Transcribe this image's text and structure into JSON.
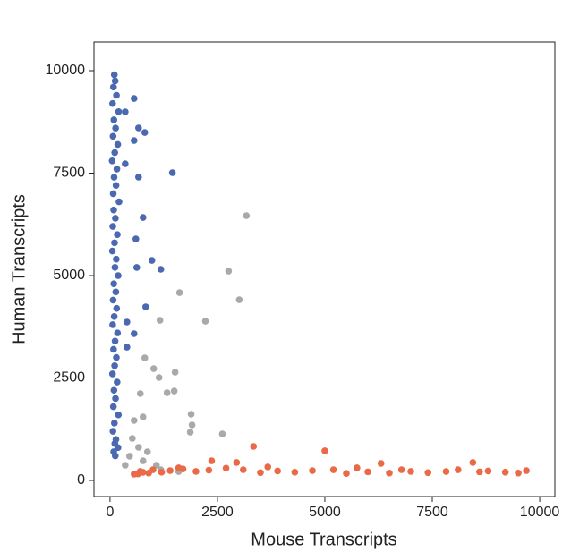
{
  "chart_data": {
    "type": "scatter",
    "x_label": "Mouse Transcripts",
    "y_label": "Human Transcripts",
    "xlim": [
      -373,
      10353
    ],
    "ylim": [
      -393,
      10699
    ],
    "xticks": [
      0,
      2500,
      5000,
      7500,
      10000
    ],
    "yticks": [
      0,
      2500,
      5000,
      7500,
      10000
    ],
    "grid": false,
    "series": [
      {
        "color": "#4a69b0",
        "x": [
          100,
          120,
          80,
          150,
          60,
          200,
          90,
          130,
          70,
          180,
          110,
          50,
          160,
          95,
          140,
          75,
          210,
          85,
          125,
          65,
          170,
          105,
          55,
          145,
          115,
          190,
          88,
          135,
          72,
          155,
          98,
          62,
          175,
          118,
          82,
          148,
          108,
          58,
          165,
          92,
          128,
          78,
          195,
          102,
          68,
          138,
          112,
          185,
          86,
          122,
          560,
          353,
          664,
          809,
          560,
          1452,
          353,
          664,
          768,
          602,
          975,
          1183,
          622,
          830,
          394,
          560,
          394
        ],
        "values": [
          9900,
          9750,
          9600,
          9400,
          9200,
          9000,
          8800,
          8600,
          8400,
          8200,
          8000,
          7800,
          7600,
          7400,
          7200,
          7000,
          6800,
          6600,
          6400,
          6200,
          6000,
          5800,
          5600,
          5400,
          5200,
          5000,
          4800,
          4600,
          4400,
          4200,
          4000,
          3800,
          3600,
          3400,
          3200,
          3000,
          2800,
          2600,
          2400,
          2200,
          2000,
          1800,
          1600,
          1400,
          1200,
          1000,
          900,
          800,
          700,
          600,
          9323,
          8996,
          8603,
          8493,
          8297,
          7511,
          7729,
          7402,
          6419,
          5895,
          5371,
          5153,
          5197,
          4236,
          3865,
          3581,
          3253
        ]
      },
      {
        "color": "#a9a9a9",
        "x": [
          3174,
          2759,
          3008,
          1618,
          1162,
          2220,
          809,
          1017,
          1515,
          1141,
          1328,
          1494,
          1888,
          705,
          768,
          2614,
          1867,
          1909,
          560,
          519,
          664,
          871,
          456,
          768,
          1079,
          353,
          1183,
          1598
        ],
        "values": [
          6463,
          5109,
          4410,
          4585,
          3908,
          3886,
          2991,
          2729,
          2642,
          2511,
          2140,
          2183,
          1616,
          2118,
          1550,
          1135,
          1179,
          1354,
          1463,
          1026,
          808,
          699,
          590,
          480,
          371,
          371,
          262,
          218
        ]
      },
      {
        "color": "#ea6a48",
        "x": [
          3340,
          5000,
          2365,
          2946,
          6307,
          8444,
          9689,
          5747,
          3672,
          1598,
          768,
          560,
          7822,
          6784,
          4710,
          9200,
          8800,
          8100,
          7400,
          7000,
          6500,
          6000,
          5500,
          4300,
          3900,
          3500,
          3100,
          2700,
          2300,
          2000,
          1700,
          1400,
          1200,
          1000,
          900,
          700,
          650,
          9500,
          8600,
          5200
        ],
        "values": [
          830,
          721,
          480,
          437,
          415,
          437,
          240,
          306,
          328,
          306,
          197,
          153,
          218,
          262,
          240,
          200,
          230,
          260,
          190,
          220,
          180,
          210,
          170,
          200,
          230,
          190,
          260,
          300,
          250,
          220,
          280,
          240,
          200,
          260,
          180,
          220,
          160,
          180,
          210,
          260
        ]
      }
    ]
  }
}
